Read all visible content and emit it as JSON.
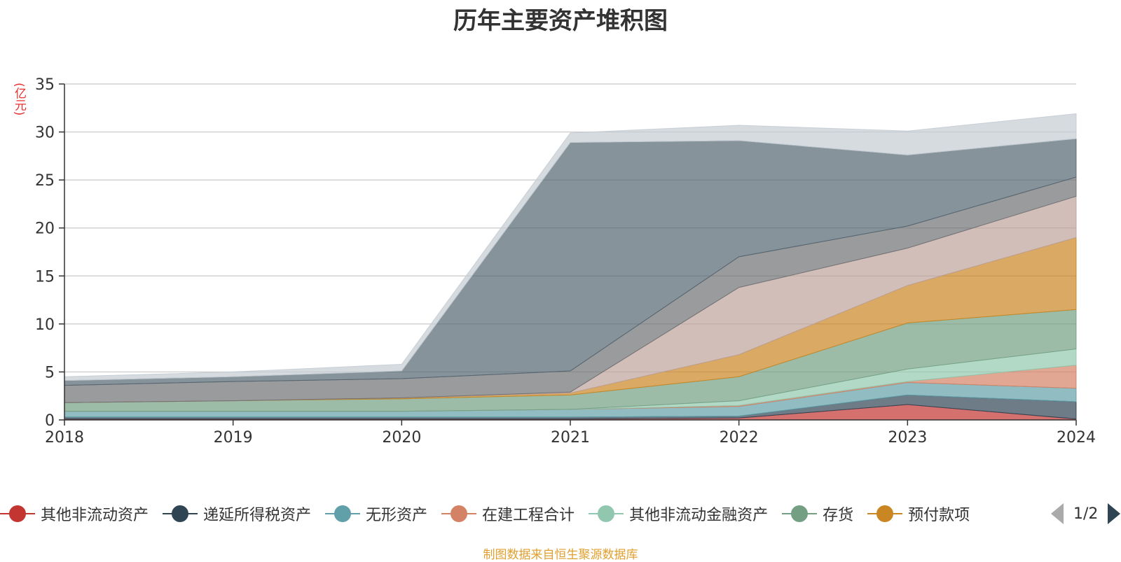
{
  "chart_data": {
    "type": "area",
    "stacked": true,
    "title": "历年主要资产堆积图",
    "ylabel": "(亿元)",
    "xlabel": "",
    "categories": [
      "2018",
      "2019",
      "2020",
      "2021",
      "2022",
      "2023",
      "2024"
    ],
    "ylim": [
      0,
      35
    ],
    "yticks": [
      0,
      5,
      10,
      15,
      20,
      25,
      30,
      35
    ],
    "grid": true,
    "legend_position": "bottom",
    "series": [
      {
        "name": "其他非流动资产",
        "color": "#c23531",
        "values": [
          0.1,
          0.1,
          0.1,
          0.1,
          0.2,
          1.6,
          0.1
        ]
      },
      {
        "name": "递延所得税资产",
        "color": "#2f4554",
        "values": [
          0.2,
          0.2,
          0.2,
          0.2,
          0.2,
          1.0,
          1.8
        ]
      },
      {
        "name": "无形资产",
        "color": "#61a0a8",
        "values": [
          0.6,
          0.6,
          0.6,
          0.8,
          1.0,
          1.3,
          1.4
        ]
      },
      {
        "name": "在建工程合计",
        "color": "#d48265",
        "values": [
          0.0,
          0.0,
          0.0,
          0.0,
          0.1,
          0.1,
          2.4
        ]
      },
      {
        "name": "其他非流动金融资产",
        "color": "#91c7ae",
        "values": [
          0.0,
          0.0,
          0.0,
          0.0,
          0.5,
          1.3,
          1.7
        ]
      },
      {
        "name": "存货",
        "color": "#749f83",
        "values": [
          0.9,
          1.1,
          1.3,
          1.5,
          2.5,
          4.8,
          4.1
        ]
      },
      {
        "name": "预付款项",
        "color": "#ca8622",
        "values": [
          0.0,
          0.0,
          0.1,
          0.2,
          2.3,
          3.9,
          7.5
        ]
      },
      {
        "name": "",
        "color": "#bda29a",
        "values": [
          0.0,
          0.0,
          0.0,
          0.1,
          7.0,
          3.9,
          4.3
        ]
      },
      {
        "name": "",
        "color": "#6e7074",
        "values": [
          1.8,
          2.0,
          2.0,
          2.2,
          3.2,
          2.3,
          2.0
        ]
      },
      {
        "name": "",
        "color": "#546570",
        "values": [
          0.5,
          0.5,
          0.8,
          23.8,
          12.1,
          7.4,
          4.0
        ]
      },
      {
        "name": "",
        "color": "#c4ccd3",
        "values": [
          0.4,
          0.5,
          0.7,
          1.0,
          1.6,
          2.5,
          2.6
        ]
      }
    ],
    "legend_pager": "1/2"
  },
  "source_note": "制图数据来自恒生聚源数据库"
}
